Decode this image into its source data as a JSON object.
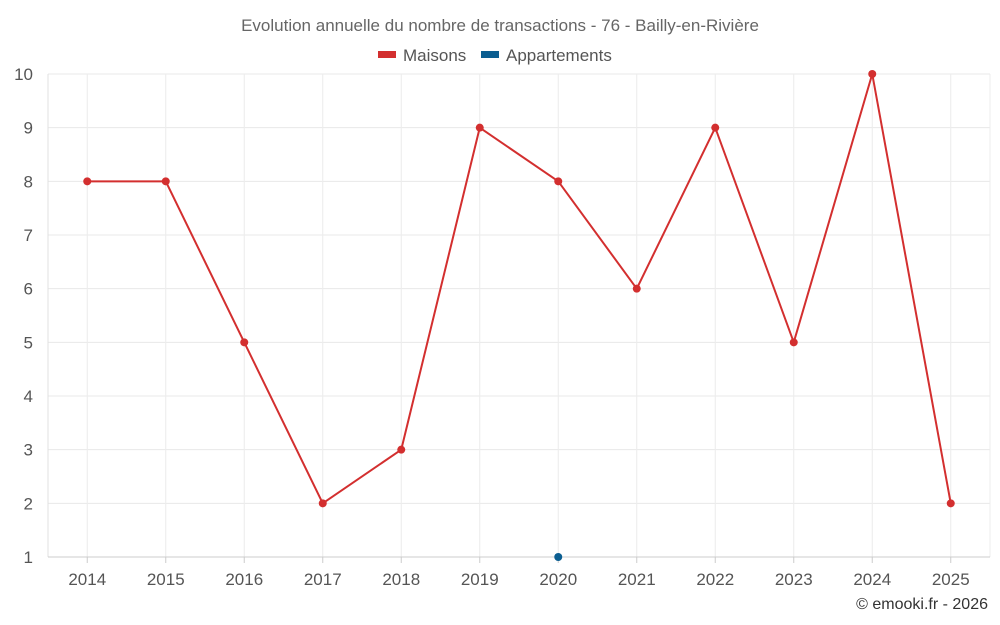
{
  "chart_data": {
    "type": "line",
    "title": "Evolution annuelle du nombre de transactions - 76 - Bailly-en-Rivière",
    "categories": [
      "2014",
      "2015",
      "2016",
      "2017",
      "2018",
      "2019",
      "2020",
      "2021",
      "2022",
      "2023",
      "2024",
      "2025"
    ],
    "series": [
      {
        "name": "Maisons",
        "color": "#d32f2f",
        "values": [
          8,
          8,
          5,
          2,
          3,
          9,
          8,
          6,
          9,
          5,
          10,
          2
        ]
      },
      {
        "name": "Appartements",
        "color": "#0b5e91",
        "values": [
          null,
          null,
          null,
          null,
          null,
          null,
          1,
          null,
          null,
          null,
          null,
          null
        ]
      }
    ],
    "ylim": [
      1,
      10
    ],
    "yticks": [
      "1",
      "2",
      "3",
      "4",
      "5",
      "6",
      "7",
      "8",
      "9",
      "10"
    ],
    "grid": true,
    "legend": "top-center",
    "xlabel": "",
    "ylabel": ""
  },
  "credit": "© emooki.fr - 2026"
}
